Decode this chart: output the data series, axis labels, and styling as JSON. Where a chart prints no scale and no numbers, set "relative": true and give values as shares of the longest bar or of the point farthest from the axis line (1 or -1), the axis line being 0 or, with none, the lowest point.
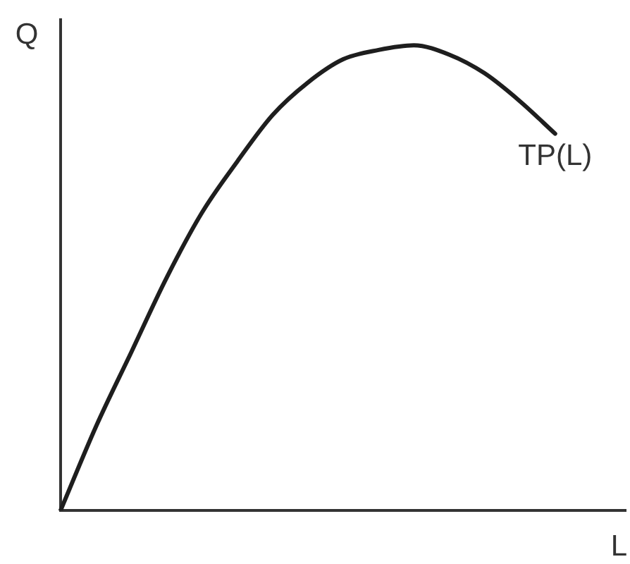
{
  "chart_data": {
    "type": "line",
    "xlabel": "L",
    "ylabel": "Q",
    "relative": true,
    "categories": [
      null,
      null,
      null,
      null,
      null,
      null,
      null,
      null,
      null,
      null,
      null,
      null,
      null,
      null,
      null,
      null,
      null
    ],
    "series": [
      {
        "name": "TP(L)",
        "color": "#1e1e1e",
        "values": [
          0,
          0.18,
          0.34,
          0.5,
          0.64,
          0.75,
          0.85,
          0.92,
          0.97,
          0.99,
          1,
          0.98,
          0.94,
          0.88,
          0.81,
          null,
          null
        ]
      }
    ]
  }
}
